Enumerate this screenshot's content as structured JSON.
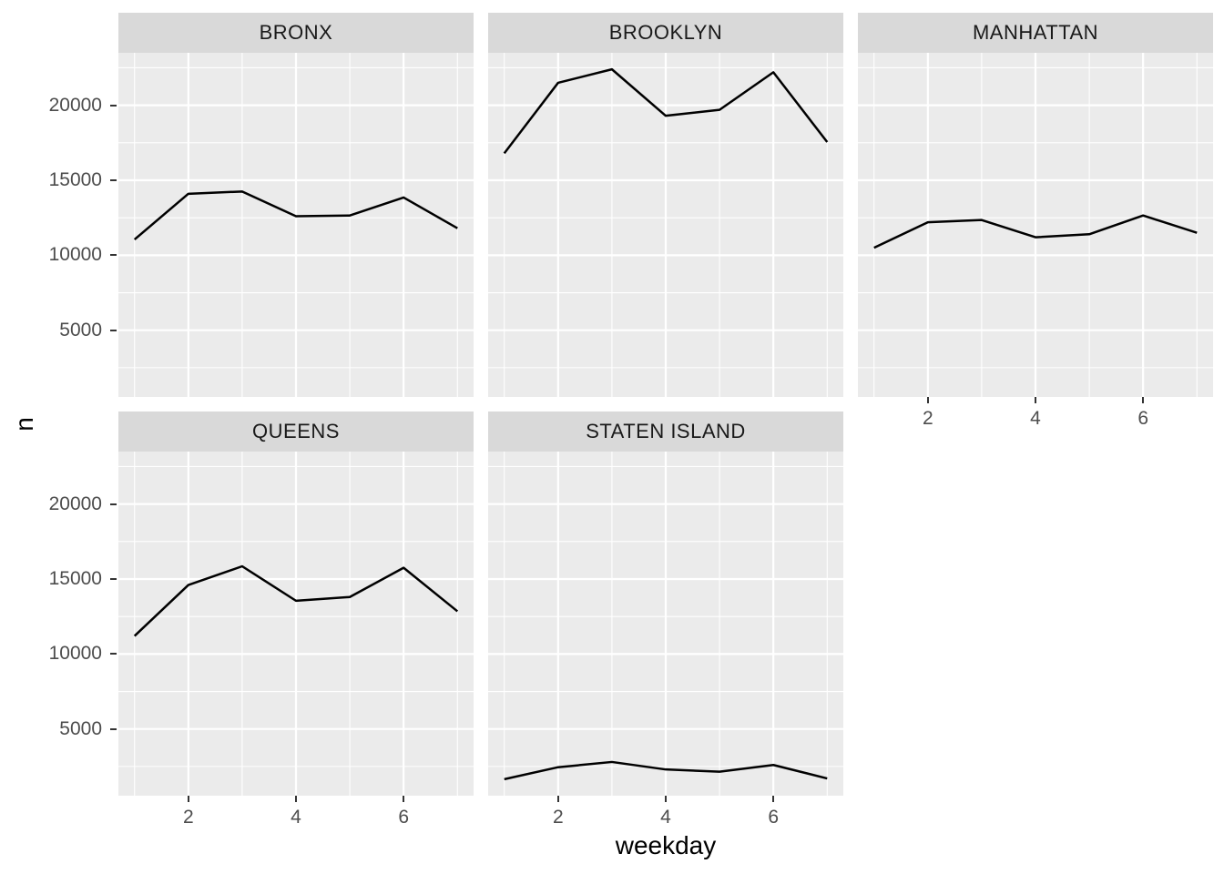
{
  "chart_data": {
    "type": "line",
    "title": "",
    "xlabel": "weekday",
    "ylabel": "n",
    "facet_variable": "borough",
    "facet_ncol": 3,
    "legend": "none",
    "grid": "on",
    "x": [
      1,
      2,
      3,
      4,
      5,
      6,
      7
    ],
    "facets": [
      {
        "label": "BRONX",
        "values": [
          11050,
          14100,
          14250,
          12600,
          12650,
          13850,
          11800
        ]
      },
      {
        "label": "BROOKLYN",
        "values": [
          16800,
          21500,
          22400,
          19300,
          19700,
          22200,
          17550
        ]
      },
      {
        "label": "MANHATTAN",
        "values": [
          10500,
          12200,
          12350,
          11200,
          11400,
          12650,
          11500
        ]
      },
      {
        "label": "QUEENS",
        "values": [
          11200,
          14600,
          15850,
          13550,
          13800,
          15750,
          12850
        ]
      },
      {
        "label": "STATEN ISLAND",
        "values": [
          1650,
          2450,
          2800,
          2300,
          2150,
          2600,
          1700
        ]
      }
    ],
    "x_ticks": [
      2,
      4,
      6
    ],
    "x_minor": [
      1,
      3,
      5,
      7
    ],
    "y_ticks": [
      5000,
      10000,
      15000,
      20000
    ],
    "y_minor": [
      2500,
      7500,
      12500,
      17500,
      22500
    ],
    "xlim": [
      0.7,
      7.3
    ],
    "ylim": [
      550,
      23500
    ]
  },
  "colors": {
    "background": "#ffffff",
    "panel_bg": "#ebebeb",
    "strip_bg": "#d9d9d9",
    "grid": "#ffffff",
    "line": "#000000",
    "axis_text": "#4d4d4d",
    "strip_text": "#1a1a1a",
    "axis_title": "#000000",
    "tick_mark": "#333333"
  }
}
